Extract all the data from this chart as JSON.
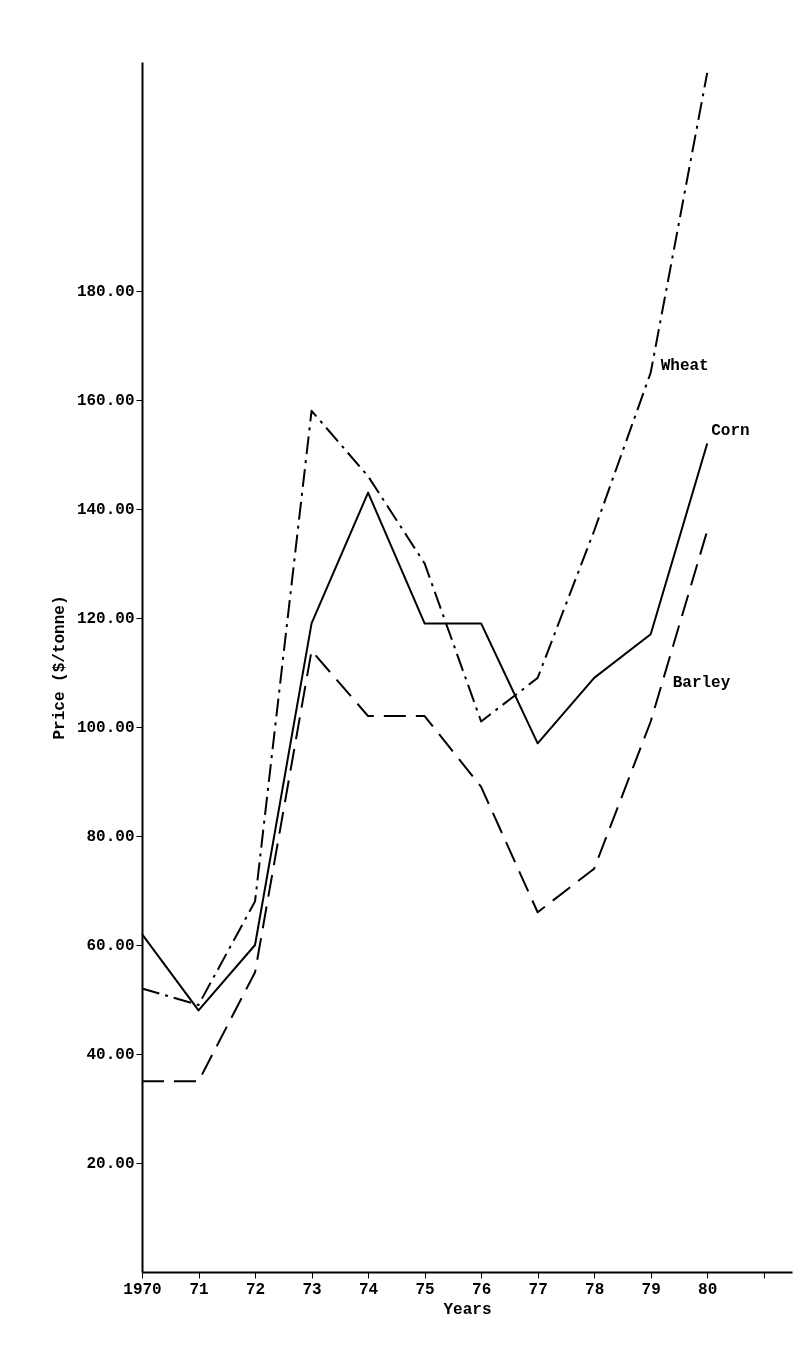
{
  "chart_data": {
    "type": "line",
    "xlabel": "Years",
    "ylabel": "Price ($/tonne)",
    "x": [
      1970,
      1971,
      1972,
      1973,
      1974,
      1975,
      1976,
      1977,
      1978,
      1979,
      1980
    ],
    "series": [
      {
        "name": "Wheat",
        "color": "#000000",
        "line_style": "dashdot",
        "values": [
          52,
          49,
          68,
          158,
          146,
          130,
          101,
          109,
          136,
          165,
          220
        ]
      },
      {
        "name": "Corn",
        "color": "#000000",
        "line_style": "solid",
        "values": [
          62,
          48,
          60,
          119,
          143,
          119,
          119,
          97,
          109,
          117,
          152
        ]
      },
      {
        "name": "Barley",
        "color": "#000000",
        "line_style": "dashed",
        "values": [
          35,
          35,
          55,
          114,
          102,
          102,
          89,
          66,
          74,
          101,
          136
        ]
      }
    ],
    "xlim": [
      1970,
      1981.5
    ],
    "xticks": [
      {
        "value": 1970,
        "label": "1970"
      },
      {
        "value": 1971,
        "label": "71"
      },
      {
        "value": 1972,
        "label": "72"
      },
      {
        "value": 1973,
        "label": "73"
      },
      {
        "value": 1974,
        "label": "74"
      },
      {
        "value": 1975,
        "label": "75"
      },
      {
        "value": 1976,
        "label": "76"
      },
      {
        "value": 1977,
        "label": "77"
      },
      {
        "value": 1978,
        "label": "78"
      },
      {
        "value": 1979,
        "label": "79"
      },
      {
        "value": 1980,
        "label": "80"
      },
      {
        "value": 1981,
        "label": null
      }
    ],
    "ylim": [
      0,
      222
    ],
    "yticks": [
      {
        "value": 20,
        "label": "20.00"
      },
      {
        "value": 40,
        "label": "40.00"
      },
      {
        "value": 60,
        "label": "60.00"
      },
      {
        "value": 80,
        "label": "80.00"
      },
      {
        "value": 100,
        "label": "100.00"
      },
      {
        "value": 120,
        "label": "120.00"
      },
      {
        "value": 140,
        "label": "140.00"
      },
      {
        "value": 160,
        "label": "160.00"
      },
      {
        "value": 180,
        "label": "180.00"
      }
    ],
    "grid": false,
    "legend": false,
    "marker": "none"
  }
}
